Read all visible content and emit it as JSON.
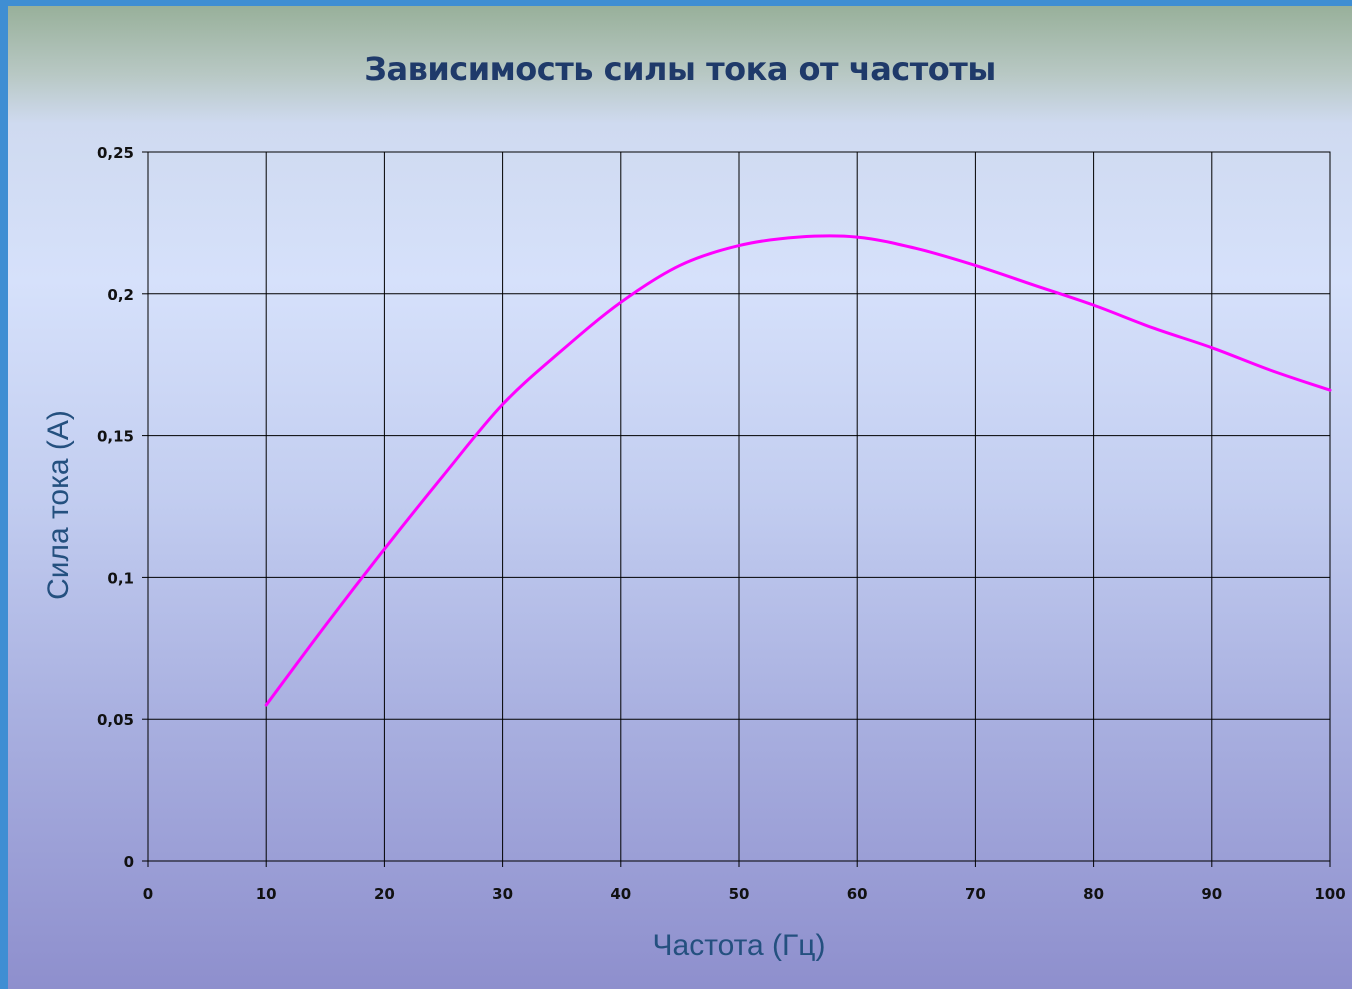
{
  "chart_data": {
    "type": "line",
    "title": "Зависимость силы тока от частоты",
    "xlabel": "Частота (Гц)",
    "ylabel": "Сила тока (А)",
    "xlim": [
      0,
      100
    ],
    "ylim": [
      0,
      0.25
    ],
    "x_ticks": [
      "0",
      "10",
      "20",
      "30",
      "40",
      "50",
      "60",
      "70",
      "80",
      "90",
      "100"
    ],
    "y_ticks": [
      "0",
      "0,05",
      "0,1",
      "0,15",
      "0,2",
      "0,25"
    ],
    "grid": true,
    "legend": "none",
    "series": [
      {
        "color": "#ff00ff",
        "x": [
          10,
          15,
          20,
          25,
          30,
          35,
          40,
          45,
          50,
          55,
          60,
          65,
          70,
          75,
          80,
          85,
          90,
          95,
          100
        ],
        "y": [
          0.055,
          0.083,
          0.11,
          0.136,
          0.161,
          0.18,
          0.197,
          0.21,
          0.217,
          0.22,
          0.22,
          0.216,
          0.21,
          0.203,
          0.196,
          0.188,
          0.181,
          0.173,
          0.166
        ]
      }
    ]
  }
}
